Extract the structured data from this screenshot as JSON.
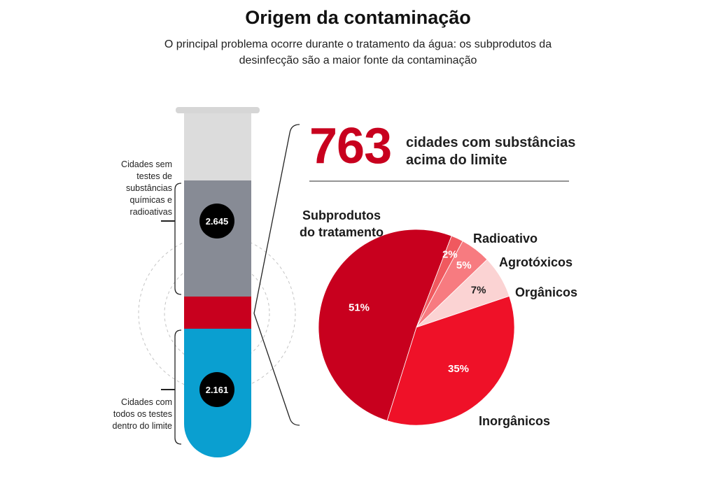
{
  "header": {
    "title": "Origem da contaminação",
    "subtitle": "O principal problema ocorre durante o tratamento da água: os subprodutos da desinfecção são a maior fonte da contaminação"
  },
  "tube": {
    "top_label": "Cidades sem testes de substâncias químicas e radioativas",
    "top_value": "2.645",
    "bottom_label": "Cidades com todos os testes dentro do limite",
    "bottom_value": "2.161",
    "colors": {
      "empty": "#dcdcdc",
      "untested": "#878b95",
      "contaminated": "#c8001e",
      "ok": "#0a9fd0"
    }
  },
  "highlight": {
    "number": "763",
    "text": "cidades com substâncias acima do limite"
  },
  "chart_data": {
    "type": "pie",
    "title": "",
    "slices": [
      {
        "name": "Subprodutos do tratamento",
        "value": 51,
        "label": "51%",
        "color": "#c8001e"
      },
      {
        "name": "Radioativo",
        "value": 2,
        "label": "2%",
        "color": "#f0595f"
      },
      {
        "name": "Agrotóxicos",
        "value": 5,
        "label": "5%",
        "color": "#f77b80"
      },
      {
        "name": "Orgânicos",
        "value": 7,
        "label": "7%",
        "color": "#fbd3d3"
      },
      {
        "name": "Inorgânicos",
        "value": 35,
        "label": "35%",
        "color": "#ef1128"
      }
    ]
  }
}
